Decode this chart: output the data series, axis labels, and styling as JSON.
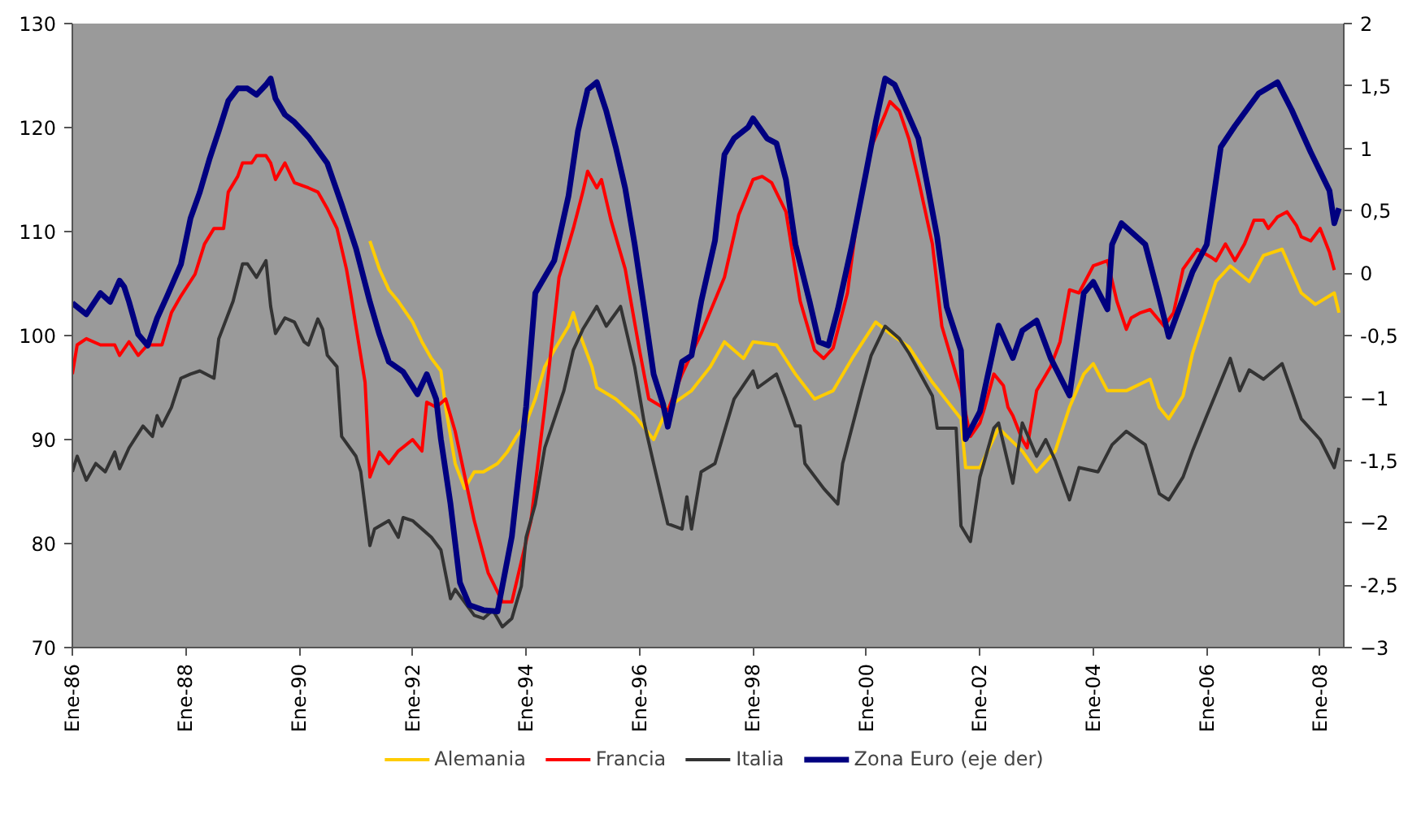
{
  "chart_data": {
    "type": "line",
    "xlim": [
      "1986-01",
      "2008-06"
    ],
    "xticks": [
      {
        "value": "1986-01",
        "label": "Ene-86"
      },
      {
        "value": "1988-01",
        "label": "Ene-88"
      },
      {
        "value": "1990-01",
        "label": "Ene-90"
      },
      {
        "value": "1992-01",
        "label": "Ene-92"
      },
      {
        "value": "1994-01",
        "label": "Ene-94"
      },
      {
        "value": "1996-01",
        "label": "Ene-96"
      },
      {
        "value": "1998-01",
        "label": "Ene-98"
      },
      {
        "value": "2000-01",
        "label": "Ene-00"
      },
      {
        "value": "2002-01",
        "label": "Ene-02"
      },
      {
        "value": "2004-01",
        "label": "Ene-04"
      },
      {
        "value": "2006-01",
        "label": "Ene-06"
      },
      {
        "value": "2008-01",
        "label": "Ene-08"
      }
    ],
    "ylim": [
      70,
      130
    ],
    "yticks": [
      70,
      80,
      90,
      100,
      110,
      120,
      130
    ],
    "y2lim": [
      -3,
      2
    ],
    "y2ticks": [
      -3,
      {
        "value": -2.5,
        "label": "-2,5"
      },
      -2,
      {
        "value": -1.5,
        "label": "-1,5"
      },
      -1,
      {
        "value": -0.5,
        "label": "-0,5"
      },
      0,
      {
        "value": 0.5,
        "label": "0,5"
      },
      1,
      {
        "value": 1.5,
        "label": "1,5"
      },
      2
    ],
    "grid": false,
    "legend": "bottom",
    "series": [
      {
        "name": "Alemania",
        "color": "#ffcc00",
        "x": [
          "1991-04",
          "1991-06",
          "1991-08",
          "1991-10",
          "1992-01",
          "1992-03",
          "1992-05",
          "1992-07",
          "1992-08",
          "1992-10",
          "1992-12",
          "1993-02",
          "1993-04",
          "1993-07",
          "1993-09",
          "1993-11",
          "1994-01",
          "1994-03",
          "1994-05",
          "1994-07",
          "1994-10",
          "1994-11",
          "1994-12",
          "1995-03",
          "1995-04",
          "1995-08",
          "1995-12",
          "1996-04",
          "1996-07",
          "1996-12",
          "1997-04",
          "1997-07",
          "1997-11",
          "1998-01",
          "1998-06",
          "1998-10",
          "1999-02",
          "1999-06",
          "1999-10",
          "2000-03",
          "2000-06",
          "2000-10",
          "2001-03",
          "2001-09",
          "2001-10",
          "2002-01",
          "2002-05",
          "2002-10",
          "2003-01",
          "2003-05",
          "2003-08",
          "2003-11",
          "2004-01",
          "2004-04",
          "2004-08",
          "2005-01",
          "2005-03",
          "2005-05",
          "2005-08",
          "2005-10",
          "2006-03",
          "2006-06",
          "2006-10",
          "2007-01",
          "2007-05",
          "2007-09",
          "2007-12",
          "2008-04",
          "2008-05"
        ],
        "values": [
          109.1,
          106.4,
          104.4,
          103.3,
          101.3,
          99.4,
          97.8,
          96.6,
          93.1,
          87.7,
          85.3,
          86.9,
          86.9,
          87.7,
          88.8,
          90.3,
          91.6,
          93.9,
          97.0,
          98.6,
          100.9,
          102.2,
          100.6,
          97.0,
          95.0,
          93.9,
          92.3,
          90.0,
          93.1,
          94.7,
          97.0,
          99.4,
          97.8,
          99.4,
          99.1,
          96.3,
          93.9,
          94.7,
          97.8,
          101.3,
          100.2,
          98.9,
          95.5,
          92.0,
          87.3,
          87.3,
          91.1,
          88.9,
          86.9,
          88.9,
          93.1,
          96.3,
          97.3,
          94.7,
          94.7,
          95.8,
          93.1,
          92.0,
          94.2,
          98.3,
          105.2,
          106.7,
          105.2,
          107.7,
          108.3,
          104.1,
          103.0,
          104.1,
          102.2
        ]
      },
      {
        "name": "Francia",
        "color": "#ff0000",
        "x": [
          "1986-01",
          "1986-02",
          "1986-04",
          "1986-07",
          "1986-10",
          "1986-11",
          "1987-01",
          "1987-03",
          "1987-05",
          "1987-08",
          "1987-10",
          "1987-12",
          "1988-03",
          "1988-05",
          "1988-07",
          "1988-09",
          "1988-10",
          "1988-12",
          "1989-01",
          "1989-03",
          "1989-04",
          "1989-06",
          "1989-07",
          "1989-08",
          "1989-10",
          "1989-12",
          "1990-03",
          "1990-05",
          "1990-07",
          "1990-09",
          "1990-11",
          "1990-12",
          "1991-01",
          "1991-03",
          "1991-04",
          "1991-06",
          "1991-08",
          "1991-10",
          "1992-01",
          "1992-03",
          "1992-04",
          "1992-06",
          "1992-08",
          "1992-10",
          "1993-02",
          "1993-05",
          "1993-08",
          "1993-10",
          "1994-02",
          "1994-05",
          "1994-08",
          "1994-11",
          "1995-01",
          "1995-02",
          "1995-04",
          "1995-05",
          "1995-07",
          "1995-10",
          "1996-01",
          "1996-03",
          "1996-07",
          "1996-10",
          "1997-02",
          "1997-07",
          "1997-10",
          "1998-01",
          "1998-03",
          "1998-05",
          "1998-08",
          "1998-11",
          "1999-02",
          "1999-04",
          "1999-06",
          "1999-09",
          "1999-11",
          "2000-02",
          "2000-05",
          "2000-06",
          "2000-08",
          "2000-10",
          "2000-12",
          "2001-03",
          "2001-05",
          "2001-09",
          "2001-11",
          "2002-01",
          "2002-02",
          "2002-04",
          "2002-06",
          "2002-07",
          "2002-08",
          "2002-10",
          "2002-11",
          "2003-01",
          "2003-04",
          "2003-06",
          "2003-08",
          "2003-10",
          "2004-01",
          "2004-04",
          "2004-06",
          "2004-08",
          "2004-09",
          "2004-11",
          "2005-01",
          "2005-04",
          "2005-06",
          "2005-08",
          "2005-11",
          "2006-02",
          "2006-03",
          "2006-05",
          "2006-07",
          "2006-09",
          "2006-11",
          "2007-01",
          "2007-02",
          "2007-04",
          "2007-06",
          "2007-08",
          "2007-09",
          "2007-11",
          "2008-01",
          "2008-03",
          "2008-04"
        ],
        "values": [
          96.3,
          99.1,
          99.7,
          99.1,
          99.1,
          98.1,
          99.4,
          98.1,
          99.1,
          99.1,
          102.2,
          103.8,
          105.9,
          108.8,
          110.3,
          110.3,
          113.8,
          115.3,
          116.6,
          116.6,
          117.3,
          117.3,
          116.6,
          115.0,
          116.6,
          114.7,
          114.2,
          113.8,
          112.2,
          110.3,
          106.4,
          103.8,
          100.9,
          95.5,
          86.4,
          88.8,
          87.7,
          88.9,
          90.0,
          88.9,
          93.6,
          93.1,
          93.9,
          90.8,
          82.2,
          77.2,
          74.4,
          74.4,
          82.2,
          93.1,
          105.6,
          110.3,
          113.8,
          115.8,
          114.2,
          115.0,
          111.1,
          106.4,
          98.6,
          93.9,
          92.8,
          96.3,
          100.2,
          105.6,
          111.6,
          115.0,
          115.3,
          114.7,
          111.9,
          103.3,
          98.6,
          97.8,
          98.8,
          104.1,
          111.1,
          118.1,
          121.3,
          122.5,
          121.6,
          118.9,
          115.0,
          108.8,
          100.9,
          94.7,
          90.3,
          91.6,
          93.1,
          96.3,
          95.2,
          93.1,
          92.3,
          90.0,
          89.2,
          94.7,
          97.0,
          99.4,
          104.4,
          104.1,
          106.7,
          107.2,
          103.3,
          100.6,
          101.7,
          102.2,
          102.5,
          100.9,
          102.2,
          106.4,
          108.3,
          107.5,
          107.2,
          108.8,
          107.2,
          108.8,
          111.1,
          111.1,
          110.3,
          111.4,
          111.9,
          110.6,
          109.5,
          109.1,
          110.3,
          108.0,
          106.3
        ]
      },
      {
        "name": "Italia",
        "color": "#333333",
        "x": [
          "1986-01",
          "1986-02",
          "1986-04",
          "1986-06",
          "1986-08",
          "1986-10",
          "1986-11",
          "1987-01",
          "1987-04",
          "1987-06",
          "1987-07",
          "1987-08",
          "1987-10",
          "1987-12",
          "1988-02",
          "1988-04",
          "1988-07",
          "1988-08",
          "1988-11",
          "1989-01",
          "1989-02",
          "1989-04",
          "1989-06",
          "1989-07",
          "1989-08",
          "1989-10",
          "1989-12",
          "1990-02",
          "1990-03",
          "1990-05",
          "1990-06",
          "1990-07",
          "1990-09",
          "1990-10",
          "1991-01",
          "1991-02",
          "1991-04",
          "1991-05",
          "1991-08",
          "1991-10",
          "1991-11",
          "1992-01",
          "1992-05",
          "1992-07",
          "1992-09",
          "1992-10",
          "1993-02",
          "1993-04",
          "1993-06",
          "1993-08",
          "1993-10",
          "1993-12",
          "1994-01",
          "1994-03",
          "1994-05",
          "1994-09",
          "1994-11",
          "1995-01",
          "1995-04",
          "1995-06",
          "1995-09",
          "1995-10",
          "1995-12",
          "1996-02",
          "1996-04",
          "1996-07",
          "1996-10",
          "1996-11",
          "1996-12",
          "1997-02",
          "1997-05",
          "1997-07",
          "1997-09",
          "1998-01",
          "1998-02",
          "1998-06",
          "1998-08",
          "1998-10",
          "1998-11",
          "1998-12",
          "1999-04",
          "1999-07",
          "1999-08",
          "1999-12",
          "2000-02",
          "2000-05",
          "2000-08",
          "2000-10",
          "2001-03",
          "2001-04",
          "2001-08",
          "2001-09",
          "2001-11",
          "2002-01",
          "2002-04",
          "2002-05",
          "2002-08",
          "2002-10",
          "2003-01",
          "2003-03",
          "2003-05",
          "2003-08",
          "2003-10",
          "2004-02",
          "2004-05",
          "2004-08",
          "2004-12",
          "2005-03",
          "2005-05",
          "2005-08",
          "2005-10",
          "2006-01",
          "2006-06",
          "2006-08",
          "2006-10",
          "2007-01",
          "2007-05",
          "2007-07",
          "2007-09",
          "2008-01",
          "2008-04",
          "2008-05"
        ],
        "values": [
          86.9,
          88.4,
          86.1,
          87.7,
          86.9,
          88.8,
          87.2,
          89.2,
          91.3,
          90.3,
          92.3,
          91.3,
          93.1,
          95.9,
          96.3,
          96.6,
          95.9,
          99.7,
          103.3,
          106.9,
          106.9,
          105.6,
          107.2,
          102.8,
          100.2,
          101.7,
          101.3,
          99.4,
          99.1,
          101.6,
          100.6,
          98.1,
          97.0,
          90.3,
          88.4,
          86.9,
          79.8,
          81.4,
          82.2,
          80.6,
          82.5,
          82.2,
          80.6,
          79.4,
          74.7,
          75.6,
          73.1,
          72.8,
          73.6,
          72.0,
          72.8,
          75.9,
          80.6,
          83.8,
          89.2,
          94.7,
          98.6,
          100.6,
          102.8,
          100.9,
          102.8,
          100.9,
          97.0,
          91.6,
          87.7,
          81.9,
          81.4,
          84.5,
          81.4,
          86.9,
          87.7,
          90.8,
          93.9,
          96.6,
          95.0,
          96.3,
          93.9,
          91.3,
          91.3,
          87.7,
          85.3,
          83.8,
          87.7,
          94.7,
          98.1,
          100.9,
          99.7,
          98.3,
          94.2,
          91.1,
          91.1,
          81.7,
          80.2,
          86.4,
          91.1,
          91.6,
          85.8,
          91.6,
          88.4,
          90.0,
          88.0,
          84.2,
          87.3,
          86.9,
          89.5,
          90.8,
          89.5,
          84.8,
          84.2,
          86.4,
          88.9,
          92.3,
          97.8,
          94.7,
          96.7,
          95.8,
          97.3,
          94.7,
          92.0,
          90.0,
          87.3,
          89.2
        ]
      },
      {
        "name": "Zona Euro (eje der)",
        "color": "#000080",
        "axis": "y2",
        "x": [
          "1986-01",
          "1986-04",
          "1986-07",
          "1986-09",
          "1986-11",
          "1986-12",
          "1987-01",
          "1987-03",
          "1987-05",
          "1987-07",
          "1987-09",
          "1987-12",
          "1988-02",
          "1988-04",
          "1988-06",
          "1988-08",
          "1988-10",
          "1988-12",
          "1989-02",
          "1989-04",
          "1989-06",
          "1989-07",
          "1989-08",
          "1989-10",
          "1989-12",
          "1990-03",
          "1990-07",
          "1990-10",
          "1991-01",
          "1991-04",
          "1991-06",
          "1991-08",
          "1991-11",
          "1992-02",
          "1992-04",
          "1992-06",
          "1992-07",
          "1992-09",
          "1992-11",
          "1993-01",
          "1993-04",
          "1993-07",
          "1993-10",
          "1994-01",
          "1994-03",
          "1994-07",
          "1994-10",
          "1994-12",
          "1995-02",
          "1995-04",
          "1995-06",
          "1995-08",
          "1995-10",
          "1995-12",
          "1996-02",
          "1996-04",
          "1996-06",
          "1996-07",
          "1996-10",
          "1996-12",
          "1997-02",
          "1997-05",
          "1997-07",
          "1997-09",
          "1997-12",
          "1998-01",
          "1998-04",
          "1998-06",
          "1998-08",
          "1998-10",
          "1999-01",
          "1999-03",
          "1999-05",
          "1999-07",
          "1999-10",
          "2000-01",
          "2000-03",
          "2000-05",
          "2000-07",
          "2000-09",
          "2000-12",
          "2001-02",
          "2001-04",
          "2001-06",
          "2001-09",
          "2001-10",
          "2002-01",
          "2002-05",
          "2002-08",
          "2002-10",
          "2003-01",
          "2003-04",
          "2003-08",
          "2003-11",
          "2004-01",
          "2004-04",
          "2004-05",
          "2004-07",
          "2004-12",
          "2005-03",
          "2005-05",
          "2005-08",
          "2005-10",
          "2006-01",
          "2006-04",
          "2006-07",
          "2006-12",
          "2007-04",
          "2007-07",
          "2007-11",
          "2008-03",
          "2008-04",
          "2008-05"
        ],
        "values": [
          -0.24,
          -0.33,
          -0.16,
          -0.23,
          -0.06,
          -0.11,
          -0.23,
          -0.49,
          -0.58,
          -0.36,
          -0.19,
          0.07,
          0.44,
          0.65,
          0.91,
          1.14,
          1.38,
          1.48,
          1.48,
          1.43,
          1.51,
          1.56,
          1.4,
          1.27,
          1.21,
          1.09,
          0.88,
          0.55,
          0.2,
          -0.23,
          -0.49,
          -0.71,
          -0.79,
          -0.97,
          -0.81,
          -1.01,
          -1.33,
          -1.85,
          -2.48,
          -2.66,
          -2.7,
          -2.71,
          -2.11,
          -1.07,
          -0.16,
          0.1,
          0.62,
          1.14,
          1.47,
          1.53,
          1.3,
          1.01,
          0.68,
          0.23,
          -0.29,
          -0.81,
          -1.05,
          -1.23,
          -0.71,
          -0.66,
          -0.23,
          0.26,
          0.95,
          1.08,
          1.17,
          1.24,
          1.08,
          1.04,
          0.75,
          0.23,
          -0.23,
          -0.55,
          -0.58,
          -0.29,
          0.23,
          0.82,
          1.21,
          1.56,
          1.51,
          1.34,
          1.08,
          0.68,
          0.29,
          -0.27,
          -0.62,
          -1.33,
          -1.11,
          -0.42,
          -0.68,
          -0.46,
          -0.38,
          -0.68,
          -0.98,
          -0.16,
          -0.07,
          -0.29,
          0.23,
          0.4,
          0.23,
          -0.2,
          -0.51,
          -0.2,
          0.01,
          0.23,
          1.01,
          1.18,
          1.44,
          1.53,
          1.31,
          0.97,
          0.66,
          0.4,
          0.52
        ]
      }
    ]
  }
}
